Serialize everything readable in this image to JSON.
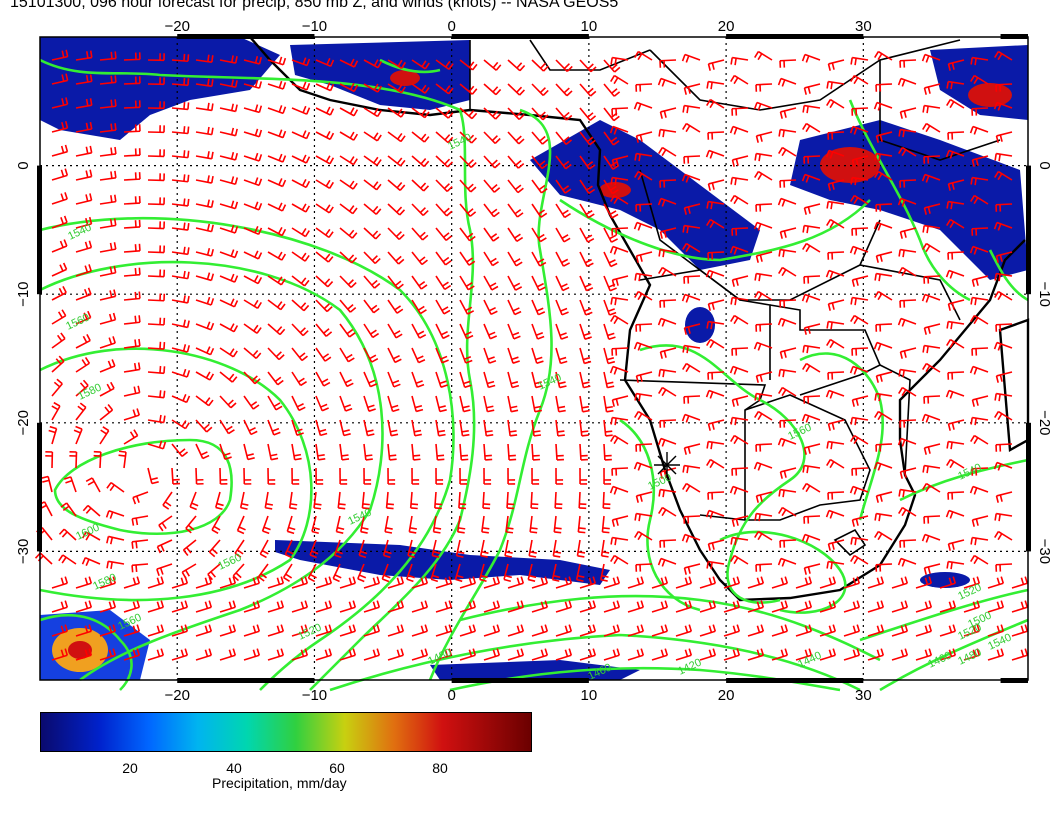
{
  "title": "15101300, 096 hour forecast for precip, 850 mb Z, and winds (knots) -- NASA GEOS5",
  "map": {
    "lon_range": [
      -30,
      42
    ],
    "lat_range": [
      -40,
      10
    ],
    "lon_ticks": [
      {
        "value": -20,
        "label": "−20"
      },
      {
        "value": -10,
        "label": "−10"
      },
      {
        "value": 0,
        "label": "0"
      },
      {
        "value": 10,
        "label": "10"
      },
      {
        "value": 20,
        "label": "20"
      },
      {
        "value": 30,
        "label": "30"
      }
    ],
    "lat_ticks": [
      {
        "value": 0,
        "label": "0"
      },
      {
        "value": -10,
        "label": "−10"
      },
      {
        "value": -20,
        "label": "−20"
      },
      {
        "value": -30,
        "label": "−30"
      }
    ],
    "contour_labels": [
      "1540",
      "1560",
      "1580",
      "1600",
      "1560",
      "1540",
      "1520",
      "1580",
      "1560",
      "1480",
      "1460",
      "1540",
      "1540",
      "1500",
      "1560",
      "1520",
      "1540",
      "1520",
      "1500",
      "1480",
      "1460",
      "1440",
      "1420",
      "1540"
    ],
    "colors": {
      "wind_barbs": "#ff0000",
      "height_contours": "#33cc33",
      "coastlines": "#000000",
      "grid": "#000000"
    },
    "icons": [
      "wind-barb-icon",
      "height-contour-icon",
      "location-star-icon"
    ]
  },
  "colorbar": {
    "ticks": [
      "20",
      "40",
      "60",
      "80"
    ],
    "label": "Precipitation, mm/day",
    "colors": [
      "#0a0a6e",
      "#0022cc",
      "#0066ff",
      "#00b4f0",
      "#00d6b0",
      "#30d040",
      "#c8d010",
      "#e07010",
      "#d01010",
      "#6b0000"
    ]
  }
}
